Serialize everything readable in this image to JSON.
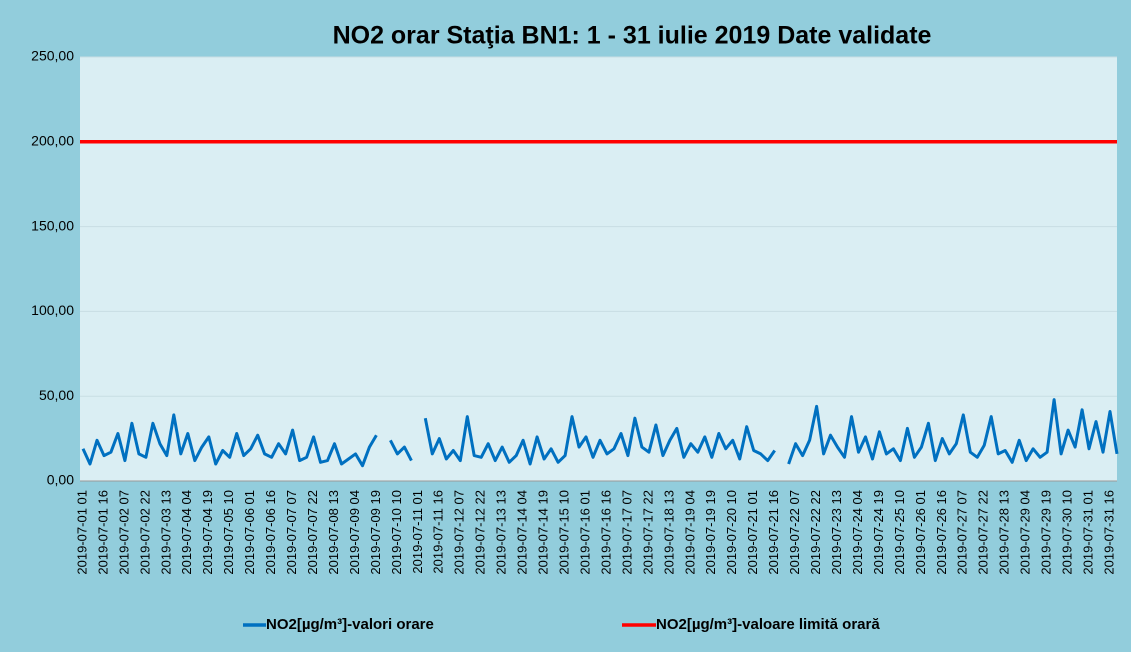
{
  "chart_data": {
    "type": "line",
    "title": "NO2 orar Staţia BN1: 1 - 31 iulie 2019 Date validate",
    "categories": [
      "2019-07-01 01",
      null,
      null,
      "2019-07-01 16",
      null,
      null,
      "2019-07-02 07",
      null,
      null,
      "2019-07-02 22",
      null,
      null,
      "2019-07-03 13",
      null,
      null,
      "2019-07-04 04",
      null,
      null,
      "2019-07-04 19",
      null,
      null,
      "2019-07-05 10",
      null,
      null,
      "2019-07-06 01",
      null,
      null,
      "2019-07-06 16",
      null,
      null,
      "2019-07-07 07",
      null,
      null,
      "2019-07-07 22",
      null,
      null,
      "2019-07-08 13",
      null,
      null,
      "2019-07-09 04",
      null,
      null,
      "2019-07-09 19",
      null,
      null,
      "2019-07-10 10",
      null,
      null,
      "2019-07-11 01",
      null,
      null,
      "2019-07-11 16",
      null,
      null,
      "2019-07-12 07",
      null,
      null,
      "2019-07-12 22",
      null,
      null,
      "2019-07-13 13",
      null,
      null,
      "2019-07-14 04",
      null,
      null,
      "2019-07-14 19",
      null,
      null,
      "2019-07-15 10",
      null,
      null,
      "2019-07-16 01",
      null,
      null,
      "2019-07-16 16",
      null,
      null,
      "2019-07-17 07",
      null,
      null,
      "2019-07-17 22",
      null,
      null,
      "2019-07-18 13",
      null,
      null,
      "2019-07-19 04",
      null,
      null,
      "2019-07-19 19",
      null,
      null,
      "2019-07-20 10",
      null,
      null,
      "2019-07-21 01",
      null,
      null,
      "2019-07-21 16",
      null,
      null,
      "2019-07-22 07",
      null,
      null,
      "2019-07-22 22",
      null,
      null,
      "2019-07-23 13",
      null,
      null,
      "2019-07-24 04",
      null,
      null,
      "2019-07-24 19",
      null,
      null,
      "2019-07-25 10",
      null,
      null,
      "2019-07-26 01",
      null,
      null,
      "2019-07-26 16",
      null,
      null,
      "2019-07-27 07",
      null,
      null,
      "2019-07-27 22",
      null,
      null,
      "2019-07-28 13",
      null,
      null,
      "2019-07-29 04",
      null,
      null,
      "2019-07-29 19",
      null,
      null,
      "2019-07-30 10",
      null,
      null,
      "2019-07-31 01",
      null,
      null,
      "2019-07-31 16",
      null
    ],
    "series": [
      {
        "name": "NO2[µg/m³]-valori orare",
        "color": "#0070c0",
        "values": [
          19,
          10,
          24,
          15,
          17,
          28,
          12,
          34,
          16,
          14,
          34,
          22,
          15,
          39,
          16,
          28,
          12,
          20,
          26,
          10,
          18,
          14,
          28,
          15,
          19,
          27,
          16,
          14,
          22,
          16,
          30,
          12,
          14,
          26,
          11,
          12,
          22,
          10,
          13,
          16,
          9,
          20,
          27,
          null,
          24,
          16,
          20,
          12,
          null,
          37,
          16,
          25,
          13,
          18,
          12,
          38,
          15,
          14,
          22,
          12,
          20,
          11,
          15,
          24,
          10,
          26,
          13,
          19,
          11,
          15,
          38,
          20,
          26,
          14,
          24,
          16,
          19,
          28,
          15,
          37,
          20,
          17,
          33,
          15,
          24,
          31,
          14,
          22,
          17,
          26,
          14,
          28,
          19,
          24,
          13,
          32,
          18,
          16,
          12,
          18,
          null,
          10,
          22,
          15,
          24,
          44,
          16,
          27,
          20,
          14,
          38,
          17,
          26,
          13,
          29,
          16,
          19,
          12,
          31,
          14,
          20,
          34,
          12,
          25,
          16,
          22,
          39,
          17,
          14,
          21,
          38,
          16,
          18,
          11,
          24,
          12,
          19,
          14,
          17,
          48,
          16,
          30,
          20,
          42,
          19,
          35,
          17,
          41,
          16
        ]
      }
    ],
    "threshold": {
      "name": "NO2[µg/m³]-valoare limită orară",
      "color": "#ff0000",
      "value": 200
    },
    "ylim": [
      0,
      250
    ],
    "yticks": [
      {
        "value": 0,
        "label": "0,00"
      },
      {
        "value": 50,
        "label": "50,00"
      },
      {
        "value": 100,
        "label": "100,00"
      },
      {
        "value": 150,
        "label": "150,00"
      },
      {
        "value": 200,
        "label": "200,00"
      },
      {
        "value": 250,
        "label": "250,00"
      }
    ],
    "grid": true
  }
}
